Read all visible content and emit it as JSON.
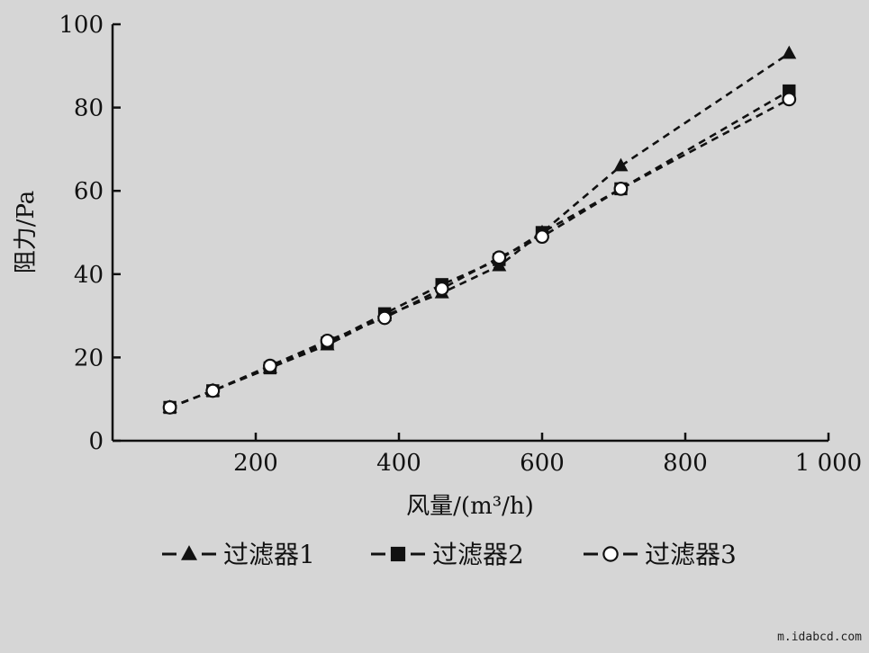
{
  "watermark": "m.idabcd.com",
  "chart_data": {
    "type": "line",
    "title": "",
    "xlabel": "风量/(m³/h)",
    "ylabel": "阻力/Pa",
    "xlim": [
      0,
      1000
    ],
    "ylim": [
      0,
      100
    ],
    "x_ticks": [
      200,
      400,
      600,
      800,
      1000
    ],
    "x_tick_labels": [
      "200",
      "400",
      "600",
      "800",
      "1 000"
    ],
    "y_ticks": [
      0,
      20,
      40,
      60,
      80,
      100
    ],
    "y_tick_labels": [
      "0",
      "20",
      "40",
      "60",
      "80",
      "100"
    ],
    "grid": false,
    "legend_position": "bottom",
    "line_style": "dashed",
    "color": "#111111",
    "series": [
      {
        "name": "过滤器1",
        "marker": "triangle",
        "x": [
          80,
          140,
          220,
          300,
          380,
          460,
          540,
          600,
          710,
          945
        ],
        "y": [
          8,
          12,
          17.5,
          23,
          30,
          35.5,
          42,
          50,
          66,
          93
        ]
      },
      {
        "name": "过滤器2",
        "marker": "square",
        "x": [
          80,
          140,
          220,
          300,
          380,
          460,
          540,
          600,
          710,
          945
        ],
        "y": [
          8,
          12,
          17.5,
          23.5,
          30.5,
          37.5,
          43.5,
          50,
          60.5,
          84
        ]
      },
      {
        "name": "过滤器3",
        "marker": "circle",
        "x": [
          80,
          140,
          220,
          300,
          380,
          460,
          540,
          600,
          710,
          945
        ],
        "y": [
          8,
          12,
          18,
          24,
          29.5,
          36.5,
          44,
          49,
          60.5,
          82
        ]
      }
    ]
  }
}
